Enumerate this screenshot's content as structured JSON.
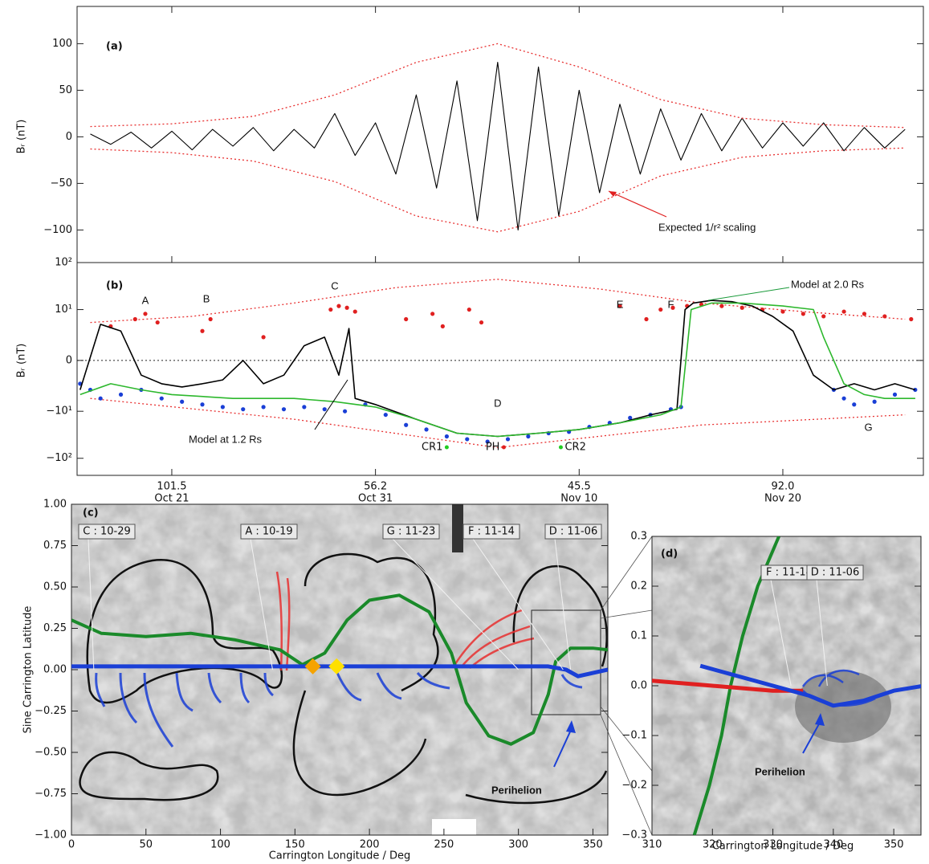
{
  "chart_data": [
    {
      "type": "line",
      "label": "(a)",
      "ylabel": "Bᵣ (nT)",
      "annotation": "Expected 1/r² scaling",
      "xlim": [
        16.35,
        57.9
      ],
      "ylim": [
        -135,
        140
      ],
      "yticks": [
        {
          "value": -100,
          "label": "−100"
        },
        {
          "value": -50,
          "label": "−50"
        },
        0,
        50,
        100
      ],
      "series": [
        {
          "color": "#000000",
          "x": [
            17,
            18,
            19,
            20,
            21,
            22,
            23,
            24,
            25,
            26,
            27,
            28,
            29,
            30,
            31,
            32,
            33,
            34,
            35,
            36,
            37,
            38,
            39,
            40,
            41,
            42,
            43,
            44,
            45,
            46,
            47,
            48,
            49,
            50,
            51,
            52,
            53,
            54,
            55,
            56,
            57
          ],
          "values": [
            3,
            -8,
            5,
            -12,
            6,
            -14,
            8,
            -10,
            10,
            -15,
            8,
            -12,
            25,
            -20,
            15,
            -40,
            45,
            -55,
            60,
            -90,
            80,
            -100,
            75,
            -85,
            50,
            -60,
            35,
            -40,
            30,
            -25,
            25,
            -15,
            20,
            -12,
            15,
            -10,
            15,
            -15,
            10,
            -12,
            8
          ]
        },
        {
          "color": "#e83030",
          "dashed": true,
          "x": [
            17,
            21,
            25,
            29,
            33,
            37,
            41,
            45,
            49,
            53,
            57
          ],
          "values": [
            11,
            14,
            22,
            45,
            80,
            100,
            75,
            40,
            20,
            13,
            10
          ]
        },
        {
          "color": "#e83030",
          "dashed": true,
          "x": [
            17,
            21,
            25,
            29,
            33,
            37,
            41,
            45,
            49,
            53,
            57
          ],
          "values": [
            -13,
            -17,
            -26,
            -48,
            -85,
            -102,
            -80,
            -42,
            -22,
            -15,
            -12
          ]
        }
      ]
    },
    {
      "type": "line",
      "label": "(b)",
      "ylabel": "Bᵣ (nT)",
      "scale": "symlog",
      "zeroline": true,
      "xlim": [
        16.35,
        57.9
      ],
      "ylim": [
        -225,
        100
      ],
      "yticks": [
        {
          "value": 100,
          "label": "10²"
        },
        {
          "value": 10,
          "label": "10¹"
        },
        0,
        {
          "value": -10,
          "label": "−10¹"
        },
        {
          "value": -100,
          "label": "−10²"
        }
      ],
      "xticks": [
        {
          "value": 21,
          "label": "Oct 21"
        },
        {
          "value": 31,
          "label": "Oct 31"
        },
        {
          "value": 41,
          "label": "Nov 10"
        },
        {
          "value": 51,
          "label": "Nov 20"
        }
      ],
      "longitudes": [
        "101.5",
        "56.2",
        "45.5",
        "92.0"
      ],
      "series": [
        {
          "color": "#e83030",
          "dashed": true,
          "x": [
            17,
            22,
            27,
            32,
            37,
            42,
            47,
            52,
            57
          ],
          "values": [
            5,
            7,
            14,
            30,
            45,
            28,
            14,
            9,
            6
          ]
        },
        {
          "color": "#e83030",
          "dashed": true,
          "x": [
            17,
            27,
            37,
            47,
            57
          ],
          "values": [
            -5,
            -15,
            -60,
            -20,
            -12
          ]
        },
        {
          "color": "#e02020",
          "mode": "markers",
          "x": [
            18.0,
            19.2,
            19.7,
            20.3,
            22.5,
            22.9,
            25.5,
            28.8,
            29.2,
            29.6,
            30.0,
            32.5,
            33.8,
            34.3,
            35.6,
            36.2,
            43.0,
            44.3,
            45.0,
            45.6,
            46.3,
            47.0,
            48.0,
            49.0,
            50.0,
            51.0,
            52.0,
            53.0,
            54.0,
            55.0,
            56.0,
            57.3
          ],
          "values": [
            4,
            6,
            8,
            5,
            3,
            6,
            2,
            10,
            12,
            11,
            9,
            6,
            8,
            4,
            10,
            5,
            12,
            6,
            10,
            11,
            12,
            13,
            12,
            11,
            10,
            9,
            8,
            7,
            9,
            8,
            7,
            6
          ]
        },
        {
          "color": "#1a3fd6",
          "mode": "markers",
          "x": [
            16.5,
            17,
            17.5,
            18.5,
            19.5,
            20.5,
            21.5,
            22.5,
            23.5,
            24.5,
            25.5,
            26.5,
            27.5,
            28.5,
            29.5,
            30.5,
            31.5,
            32.5,
            33.5,
            34.5,
            35.5,
            36.5,
            37.5,
            38.5,
            39.5,
            40.5,
            41.5,
            42.5,
            43.5,
            44.5,
            45.5,
            46,
            53.5,
            54,
            54.5,
            55.5,
            56.5,
            57.5
          ],
          "values": [
            -2,
            -3,
            -5,
            -4,
            -3,
            -5,
            -6,
            -7,
            -8,
            -9,
            -8,
            -9,
            -8,
            -9,
            -10,
            -7,
            -12,
            -20,
            -25,
            -35,
            -40,
            -45,
            -40,
            -35,
            -30,
            -28,
            -22,
            -18,
            -14,
            -12,
            -9,
            -8,
            -3,
            -5,
            -7,
            -6,
            -4,
            -3
          ]
        },
        {
          "name": "Model at 1.2 Rs",
          "color": "#000000",
          "x": [
            16.5,
            17.5,
            18.5,
            19.5,
            20.5,
            21.5,
            22.5,
            23.5,
            24.5,
            25.5,
            26.5,
            27.5,
            28.5,
            29.2,
            29.7,
            30.0,
            31,
            33,
            35,
            37,
            39,
            41,
            43,
            44.5,
            45.8,
            46.2,
            46.6,
            47.5,
            48.5,
            49.5,
            50.5,
            51.5,
            52.5,
            53.5,
            54.5,
            55.5,
            56.5,
            57.5
          ],
          "values": [
            -3,
            4.5,
            3,
            -1,
            -2,
            -2.5,
            -2,
            -1.5,
            0,
            -2,
            -1,
            1,
            2,
            -1,
            3.5,
            -5,
            -7,
            -15,
            -30,
            -35,
            -30,
            -25,
            -18,
            -12,
            -9,
            10,
            14,
            16,
            15,
            12,
            7,
            3,
            -1,
            -3,
            -2,
            -3,
            -2,
            -3
          ]
        },
        {
          "name": "Model at 2.0 Rs",
          "color": "#2db82d",
          "x": [
            16.5,
            18,
            19.5,
            21,
            24,
            27,
            29,
            31,
            33,
            35,
            37,
            39,
            41,
            43,
            45,
            46,
            46.5,
            47.5,
            49,
            51,
            52.5,
            53,
            54,
            55,
            56,
            57.5
          ],
          "values": [
            -4,
            -2,
            -3,
            -4,
            -5,
            -5,
            -6,
            -8,
            -15,
            -30,
            -35,
            -30,
            -25,
            -18,
            -12,
            -8,
            10,
            14,
            14,
            12,
            10,
            2,
            -2,
            -4,
            -5,
            -5
          ]
        }
      ],
      "events": [
        {
          "label": "A",
          "x": 19.7,
          "color": "#e02020"
        },
        {
          "label": "B",
          "x": 22.7,
          "color": "#e02020"
        },
        {
          "label": "C",
          "x": 29.0,
          "color": "#e02020"
        },
        {
          "label": "D",
          "x": 37.0,
          "color": "#1a3fd6"
        },
        {
          "label": "E",
          "x": 43.0,
          "color": "#e02020"
        },
        {
          "label": "F",
          "x": 45.5,
          "color": "#e02020"
        },
        {
          "label": "G",
          "x": 55.2,
          "color": "#1a3fd6"
        }
      ],
      "markers": [
        {
          "label": "CR1",
          "x": 34.5,
          "color": "#22cc22"
        },
        {
          "label": "PH",
          "x": 37.3,
          "color": "#e02020"
        },
        {
          "label": "CR2",
          "x": 40.1,
          "color": "#22cc22"
        }
      ]
    },
    {
      "type": "map",
      "label": "(c)",
      "xlabel": "Carrington Longitude / Deg",
      "ylabel": "Sine Carrington Latitude",
      "annotation": "Perihelion",
      "xlim": [
        0,
        360
      ],
      "ylim": [
        -1,
        1
      ],
      "xticks": [
        0,
        50,
        100,
        150,
        200,
        250,
        300,
        350
      ],
      "yticks": [
        {
          "value": -1,
          "label": "−1.00"
        },
        {
          "value": -0.75,
          "label": "−0.75"
        },
        {
          "value": -0.5,
          "label": "−0.50"
        },
        {
          "value": -0.25,
          "label": "−0.25"
        },
        {
          "value": 0,
          "label": "0.00"
        },
        0.25,
        {
          "value": 0.5,
          "label": "0.50"
        },
        0.75,
        {
          "value": 1,
          "label": "1.00"
        }
      ],
      "series": [
        {
          "color": "#1a8a2a",
          "x": [
            0,
            20,
            50,
            80,
            110,
            140,
            155,
            170,
            185,
            200,
            220,
            240,
            255,
            265,
            280,
            295,
            310,
            320,
            325,
            335,
            350,
            360
          ],
          "values": [
            0.3,
            0.22,
            0.2,
            0.22,
            0.18,
            0.12,
            0.03,
            0.1,
            0.3,
            0.42,
            0.45,
            0.35,
            0.1,
            -0.2,
            -0.4,
            -0.45,
            -0.38,
            -0.15,
            0.05,
            0.13,
            0.13,
            0.12
          ]
        },
        {
          "color": "#1a3fd6",
          "x": [
            0,
            90,
            180,
            270,
            320,
            332,
            340,
            350,
            360
          ],
          "values": [
            0.02,
            0.02,
            0.02,
            0.02,
            0.02,
            0.0,
            -0.04,
            -0.02,
            0.0
          ]
        }
      ],
      "points": [
        {
          "x": 162,
          "y": 0.02,
          "color": "#f5a300"
        },
        {
          "x": 178,
          "y": 0.02,
          "color": "#ffe000"
        }
      ],
      "callouts": [
        {
          "label": "C : 10-29",
          "x": 15
        },
        {
          "label": "A : 10-19",
          "x": 135
        },
        {
          "label": "G : 11-23",
          "x": 300
        },
        {
          "label": "F : 11-14",
          "x": 330
        },
        {
          "label": "D : 11-06",
          "x": 335
        }
      ]
    },
    {
      "type": "map",
      "label": "(d)",
      "xlabel": "Carrington Longitude / Deg",
      "annotation": "Perihelion",
      "xlim": [
        310,
        354.5
      ],
      "ylim": [
        -0.3,
        0.3
      ],
      "xticks": [
        310,
        320,
        330,
        340,
        350
      ],
      "yticks": [
        {
          "value": -0.3,
          "label": "−0.3"
        },
        {
          "value": -0.2,
          "label": "−0.2"
        },
        {
          "value": -0.1,
          "label": "−0.1"
        },
        {
          "value": 0,
          "label": "0.0"
        },
        0.1,
        0.2,
        0.3
      ],
      "series": [
        {
          "color": "#1a8a2a",
          "x": [
            317,
            319.5,
            321.5,
            323,
            325,
            327.5,
            331
          ],
          "values": [
            -0.3,
            -0.2,
            -0.1,
            0.0,
            0.1,
            0.2,
            0.3
          ]
        },
        {
          "color": "#e02020",
          "x": [
            310,
            320,
            330,
            335
          ],
          "values": [
            0.01,
            0.0,
            -0.01,
            -0.01
          ]
        },
        {
          "color": "#1a3fd6",
          "x": [
            318,
            330,
            336,
            340,
            345,
            350,
            355
          ],
          "values": [
            0.04,
            0.0,
            -0.02,
            -0.04,
            -0.03,
            -0.01,
            0.0
          ]
        }
      ],
      "callouts": [
        {
          "label": "F : 11-14",
          "x": 333
        },
        {
          "label": "D : 11-06",
          "x": 339
        }
      ]
    }
  ]
}
